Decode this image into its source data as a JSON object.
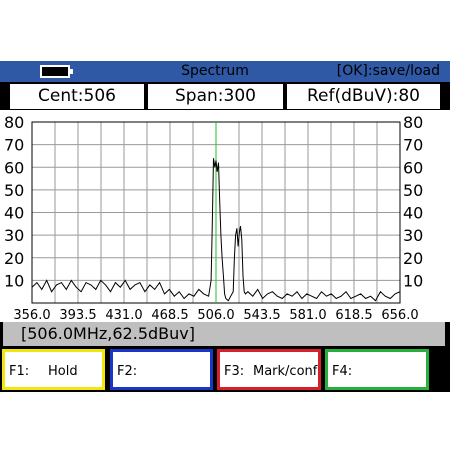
{
  "title": "Spectrum",
  "hint": "[OK]:save/load",
  "info": {
    "center": "Cent:506",
    "span": "Span:300",
    "ref": "Ref(dBuV):80"
  },
  "readout": "[506.0MHz,62.5dBuv]",
  "fkeys": [
    {
      "code": "F1:",
      "label": "Hold",
      "color": "#f2e70c"
    },
    {
      "code": "F2:",
      "label": "",
      "color": "#1a35c9"
    },
    {
      "code": "F3:",
      "label": "Mark/conf",
      "color": "#d8202a"
    },
    {
      "code": "F4:",
      "label": "",
      "color": "#29b03c"
    }
  ],
  "colors": {
    "titlebar": "#2f59a5",
    "marker": "#1fbf2c",
    "trace": "#000000",
    "grid": "#9a9a9a"
  },
  "chart_data": {
    "type": "line",
    "title": "",
    "xlabel": "",
    "ylabel": "",
    "xlim": [
      356.0,
      656.0
    ],
    "ylim": [
      0,
      80
    ],
    "x_ticks": [
      "356.0",
      "393.5",
      "431.0",
      "468.5",
      "506.0",
      "543.5",
      "581.0",
      "618.5",
      "656.0"
    ],
    "y_ticks": [
      "80",
      "70",
      "60",
      "50",
      "40",
      "30",
      "20",
      "10"
    ],
    "marker_x": 506.0,
    "series": [
      {
        "name": "",
        "x": [
          356,
          360,
          364,
          368,
          372,
          376,
          380,
          384,
          388,
          392,
          396,
          400,
          404,
          408,
          412,
          416,
          420,
          424,
          428,
          432,
          436,
          440,
          444,
          448,
          452,
          456,
          460,
          464,
          468,
          472,
          476,
          480,
          484,
          488,
          492,
          496,
          500,
          502,
          503,
          504,
          505,
          506,
          507,
          508,
          509,
          510,
          511,
          512,
          513,
          514,
          516,
          518,
          520,
          521,
          522,
          523,
          524,
          525,
          526,
          527,
          528,
          529,
          530,
          532,
          536,
          540,
          544,
          548,
          552,
          556,
          560,
          564,
          568,
          572,
          576,
          580,
          584,
          588,
          592,
          596,
          600,
          604,
          608,
          612,
          616,
          620,
          624,
          628,
          632,
          636,
          640,
          644,
          648,
          652,
          656
        ],
        "y": [
          7,
          9,
          6,
          10,
          5,
          8,
          9,
          6,
          10,
          7,
          5,
          9,
          8,
          6,
          10,
          8,
          5,
          9,
          7,
          10,
          6,
          8,
          9,
          5,
          8,
          6,
          9,
          4,
          6,
          3,
          5,
          2,
          4,
          3,
          6,
          4,
          3,
          10,
          35,
          64,
          60,
          63,
          58,
          62,
          45,
          30,
          20,
          12,
          4,
          2,
          1,
          3,
          5,
          20,
          30,
          33,
          25,
          31,
          34,
          28,
          12,
          5,
          4,
          5,
          3,
          6,
          2,
          4,
          5,
          3,
          2,
          4,
          3,
          5,
          2,
          4,
          3,
          2,
          5,
          3,
          4,
          2,
          3,
          5,
          2,
          3,
          4,
          2,
          3,
          1,
          5,
          3,
          2,
          4,
          5
        ]
      }
    ]
  }
}
